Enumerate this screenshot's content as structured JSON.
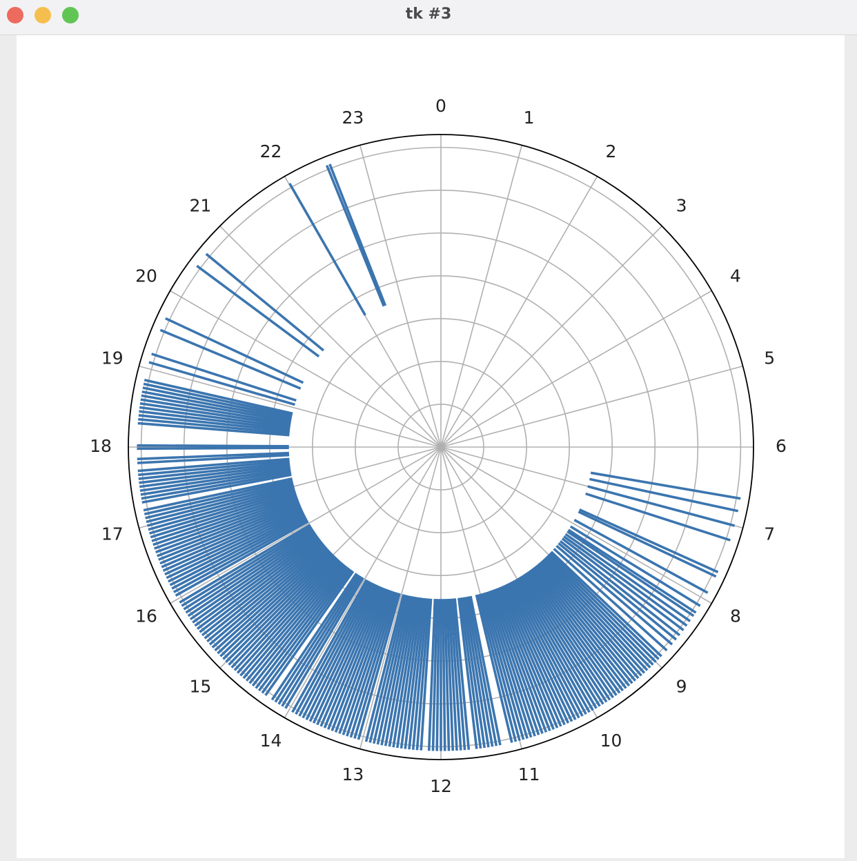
{
  "window": {
    "title": "tk #3"
  },
  "chart_data": {
    "type": "polar-bar",
    "xticks": [
      0,
      1,
      2,
      3,
      4,
      5,
      6,
      7,
      8,
      9,
      10,
      11,
      12,
      13,
      14,
      15,
      16,
      17,
      18,
      19,
      20,
      21,
      22,
      23
    ],
    "ylim": [
      0,
      7.3
    ],
    "yticks": [
      1,
      2,
      3,
      4,
      5,
      6,
      7
    ],
    "grid": true,
    "bottom": 3.55,
    "height": 3.55,
    "series": [
      {
        "color": "#3b75af",
        "x": [
          6.65,
          6.81,
          7.0,
          7.19,
          7.62,
          7.68,
          7.91,
          8.1,
          8.2,
          8.25,
          8.33,
          8.4,
          8.47,
          8.55,
          8.62,
          8.7,
          8.8,
          8.9,
          8.95,
          9,
          9.05,
          9.1,
          9.15,
          9.2,
          9.25,
          9.3,
          9.35,
          9.4,
          9.45,
          9.5,
          9.55,
          9.6,
          9.65,
          9.7,
          9.75,
          9.8,
          9.85,
          9.9,
          9.95,
          10,
          10.05,
          10.1,
          10.15,
          10.2,
          10.25,
          10.3,
          10.35,
          10.4,
          10.45,
          10.5,
          10.55,
          10.6,
          10.65,
          10.7,
          10.75,
          10.8,
          10.85,
          10.9,
          10.95,
          11,
          11.05,
          11.1,
          11.25,
          11.3,
          11.35,
          11.4,
          11.45,
          11.5,
          11.55,
          11.65,
          11.7,
          11.75,
          11.8,
          11.85,
          11.9,
          11.95,
          12,
          12.05,
          12.1,
          12.15,
          12.25,
          12.3,
          12.35,
          12.4,
          12.45,
          12.5,
          12.55,
          12.6,
          12.65,
          12.7,
          12.75,
          12.8,
          12.85,
          12.9,
          12.95,
          13.05,
          13.1,
          13.15,
          13.2,
          13.25,
          13.3,
          13.35,
          13.4,
          13.45,
          13.5,
          13.55,
          13.6,
          13.65,
          13.7,
          13.75,
          13.8,
          13.85,
          13.9,
          13.95,
          14.05,
          14.1,
          14.15,
          14.2,
          14.25,
          14.35,
          14.4,
          14.45,
          14.5,
          14.55,
          14.6,
          14.65,
          14.7,
          14.75,
          14.8,
          14.85,
          14.9,
          14.95,
          15,
          15.05,
          15.1,
          15.15,
          15.2,
          15.25,
          15.3,
          15.35,
          15.4,
          15.45,
          15.5,
          15.55,
          15.6,
          15.65,
          15.7,
          15.75,
          15.8,
          15.85,
          15.9,
          15.95,
          16.05,
          16.1,
          16.15,
          16.2,
          16.25,
          16.3,
          16.35,
          16.4,
          16.45,
          16.5,
          16.55,
          16.6,
          16.65,
          16.7,
          16.75,
          16.8,
          16.85,
          16.9,
          16.95,
          17,
          17.05,
          17.1,
          17.15,
          17.2,
          17.3,
          17.35,
          17.4,
          17.45,
          17.5,
          17.55,
          17.6,
          17.65,
          17.7,
          17.8,
          17.85,
          17.98,
          18.02,
          18.3,
          18.35,
          18.4,
          18.45,
          18.5,
          18.55,
          18.6,
          18.65,
          18.7,
          18.75,
          18.8,
          18.85,
          19.08,
          19.19,
          19.51,
          19.67,
          20.44,
          20.63,
          22.01,
          22.53,
          22.57
        ]
      }
    ]
  }
}
